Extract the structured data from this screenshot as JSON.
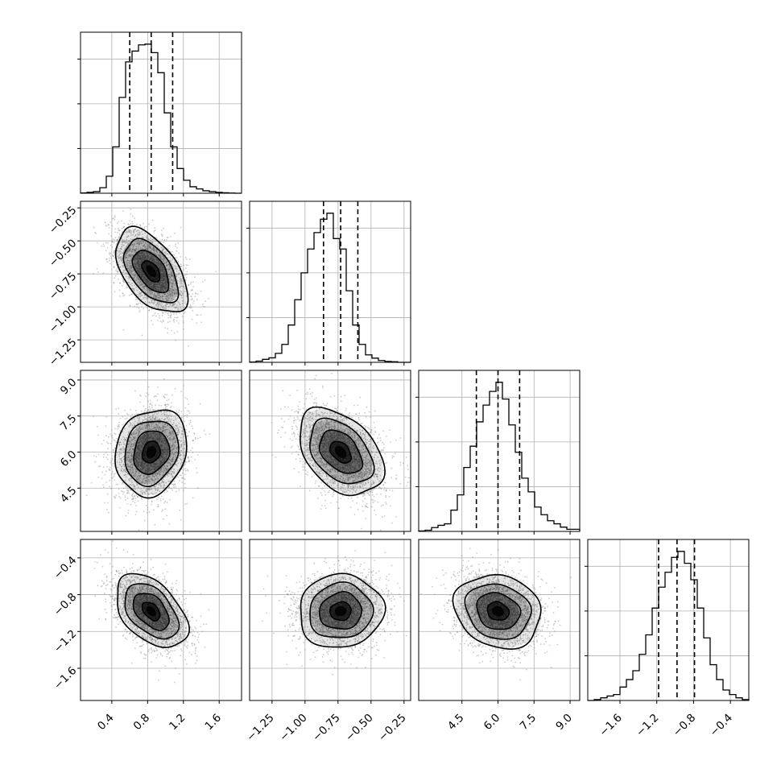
{
  "figure": {
    "type": "corner-plot",
    "grid": true,
    "colors": {
      "line": "#000000",
      "grid": "#b0b0b0",
      "points": "#8c8c8c"
    }
  },
  "chart_data": {
    "type": "corner",
    "parameters": [
      {
        "range": [
          0.05,
          1.85
        ],
        "ticks": [
          0.4,
          0.8,
          1.2,
          1.6
        ],
        "tick_labels": [
          "0.4",
          "0.8",
          "1.2",
          "1.6"
        ],
        "quantiles": [
          0.6,
          0.84,
          1.08
        ],
        "hist_bin_edges": [
          0.05,
          0.122,
          0.194,
          0.266,
          0.338,
          0.41,
          0.482,
          0.554,
          0.626,
          0.698,
          0.77,
          0.842,
          0.914,
          0.986,
          1.058,
          1.13,
          1.202,
          1.274,
          1.346,
          1.418,
          1.49,
          1.562,
          1.634,
          1.706,
          1.778,
          1.85
        ],
        "hist_counts": [
          2,
          6,
          10,
          36,
          110,
          300,
          620,
          850,
          920,
          960,
          965,
          910,
          780,
          520,
          300,
          160,
          84,
          42,
          28,
          16,
          10,
          6,
          3,
          1,
          0
        ]
      },
      {
        "range": [
          -1.42,
          -0.2
        ],
        "ticks": [
          -1.25,
          -1.0,
          -0.75,
          -0.5,
          -0.25
        ],
        "tick_labels": [
          "−1.25",
          "−1.00",
          "−0.75",
          "−0.50",
          "−0.25"
        ],
        "quantiles": [
          -0.86,
          -0.73,
          -0.6
        ],
        "hist_bin_edges": [
          -1.42,
          -1.3712,
          -1.3224,
          -1.2736,
          -1.2248,
          -1.176,
          -1.1272,
          -1.0784,
          -1.0296,
          -0.9808,
          -0.932,
          -0.8832,
          -0.8344,
          -0.7856,
          -0.7368,
          -0.688,
          -0.6392,
          -0.5904,
          -0.5416,
          -0.4928,
          -0.444,
          -0.3952,
          -0.3464,
          -0.2976,
          -0.2488,
          -0.2
        ],
        "hist_counts": [
          2,
          8,
          20,
          30,
          60,
          120,
          250,
          420,
          600,
          760,
          870,
          960,
          1000,
          830,
          760,
          480,
          250,
          120,
          50,
          28,
          12,
          6,
          4,
          0,
          0
        ]
      },
      {
        "range": [
          2.7,
          9.4
        ],
        "ticks": [
          4.5,
          6.0,
          7.5,
          9.0
        ],
        "tick_labels": [
          "4.5",
          "6.0",
          "7.5",
          "9.0"
        ],
        "quantiles": [
          5.1,
          6.0,
          6.9
        ],
        "hist_bin_edges": [
          2.7,
          2.968,
          3.236,
          3.504,
          3.772,
          4.04,
          4.308,
          4.576,
          4.844,
          5.112,
          5.38,
          5.648,
          5.916,
          6.184,
          6.452,
          6.72,
          6.988,
          7.256,
          7.524,
          7.792,
          8.06,
          8.328,
          8.596,
          8.864,
          9.132,
          9.4
        ],
        "hist_counts": [
          3,
          8,
          25,
          40,
          50,
          140,
          240,
          420,
          560,
          720,
          830,
          920,
          980,
          870,
          700,
          520,
          350,
          260,
          160,
          110,
          70,
          50,
          28,
          14,
          14
        ]
      },
      {
        "range": [
          -1.95,
          -0.2
        ],
        "ticks": [
          -1.6,
          -1.2,
          -0.8,
          -0.4
        ],
        "tick_labels": [
          "−1.6",
          "−1.2",
          "−0.8",
          "−0.4"
        ],
        "quantiles": [
          -1.18,
          -0.98,
          -0.79
        ],
        "hist_bin_edges": [
          -1.95,
          -1.88,
          -1.81,
          -1.74,
          -1.67,
          -1.6,
          -1.53,
          -1.46,
          -1.39,
          -1.32,
          -1.25,
          -1.18,
          -1.11,
          -1.04,
          -0.97,
          -0.9,
          -0.83,
          -0.76,
          -0.69,
          -0.62,
          -0.55,
          -0.48,
          -0.41,
          -0.34,
          -0.27,
          -0.2
        ],
        "hist_counts": [
          0,
          6,
          18,
          30,
          40,
          90,
          140,
          200,
          310,
          440,
          620,
          760,
          860,
          960,
          1000,
          920,
          810,
          620,
          420,
          240,
          140,
          70,
          40,
          18,
          6
        ]
      }
    ],
    "pairs": [
      {
        "x": 0,
        "y": 1,
        "mean": [
          0.84,
          -0.73
        ],
        "sd": [
          0.2,
          0.16
        ],
        "rho": -0.52
      },
      {
        "x": 0,
        "y": 2,
        "mean": [
          0.84,
          6.0
        ],
        "sd": [
          0.2,
          0.9
        ],
        "rho": 0.15
      },
      {
        "x": 1,
        "y": 2,
        "mean": [
          -0.73,
          6.0
        ],
        "sd": [
          0.16,
          0.9
        ],
        "rho": -0.4
      },
      {
        "x": 0,
        "y": 3,
        "mean": [
          0.84,
          -0.98
        ],
        "sd": [
          0.2,
          0.2
        ],
        "rho": -0.45
      },
      {
        "x": 1,
        "y": 3,
        "mean": [
          -0.73,
          -0.98
        ],
        "sd": [
          0.16,
          0.2
        ],
        "rho": 0.05
      },
      {
        "x": 2,
        "y": 3,
        "mean": [
          6.0,
          -0.98
        ],
        "sd": [
          0.9,
          0.2
        ],
        "rho": -0.15
      }
    ],
    "contour_levels_sigma": [
      0.5,
      1.0,
      1.5,
      2.0
    ]
  }
}
